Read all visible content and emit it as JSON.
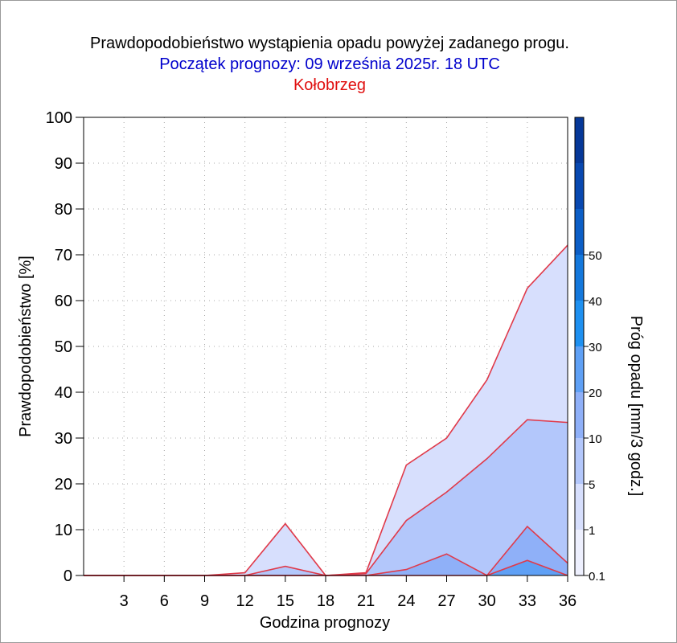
{
  "header": {
    "title": "Prawdopodobieństwo wystąpienia opadu powyżej zadanego progu.",
    "forecast_start": "Początek prognozy: 09 września 2025r. 18 UTC",
    "location": "Kołobrzeg"
  },
  "colors": {
    "title": "#000000",
    "forecast_start": "#0000cc",
    "location": "#e01010",
    "line": "#e03a4a",
    "colorbar": [
      "#eef0fe",
      "#d7dffd",
      "#b3c7fb",
      "#8fb0f8",
      "#5fa0f5",
      "#1e90f0",
      "#1478dc",
      "#0c5ec6",
      "#0848b0",
      "#063898"
    ]
  },
  "chart_data": {
    "type": "area",
    "xlabel": "Godzina prognozy",
    "ylabel": "Prawdopodobieństwo [%]",
    "x": [
      0,
      3,
      6,
      9,
      12,
      15,
      18,
      21,
      24,
      27,
      30,
      33,
      36
    ],
    "xticks": [
      3,
      6,
      9,
      12,
      15,
      18,
      21,
      24,
      27,
      30,
      33,
      36
    ],
    "xlim": [
      0,
      36
    ],
    "ylim": [
      0,
      100
    ],
    "yticks": [
      0,
      10,
      20,
      30,
      40,
      50,
      60,
      70,
      80,
      90,
      100
    ],
    "grid": true,
    "series": [
      {
        "threshold": 0.1,
        "values": [
          0,
          0,
          0,
          0,
          0.6,
          11.3,
          0,
          0.6,
          24.1,
          30.0,
          42.7,
          62.7,
          72.1
        ]
      },
      {
        "threshold": 1,
        "values": [
          0,
          0,
          0,
          0,
          0,
          2.0,
          0,
          0.4,
          12.0,
          18.2,
          25.5,
          34.0,
          33.4
        ]
      },
      {
        "threshold": 5,
        "values": [
          0,
          0,
          0,
          0,
          0,
          0,
          0,
          0,
          1.3,
          4.7,
          0,
          10.7,
          2.7
        ]
      },
      {
        "threshold": 10,
        "values": [
          0,
          0,
          0,
          0,
          0,
          0,
          0,
          0,
          0,
          0,
          0,
          3.3,
          0
        ]
      }
    ],
    "colorbar": {
      "label": "Próg opadu [mm/3 godz.]",
      "tick_labels": [
        "0.1",
        "1",
        "5",
        "10",
        "20",
        "30",
        "40",
        "50"
      ]
    }
  }
}
